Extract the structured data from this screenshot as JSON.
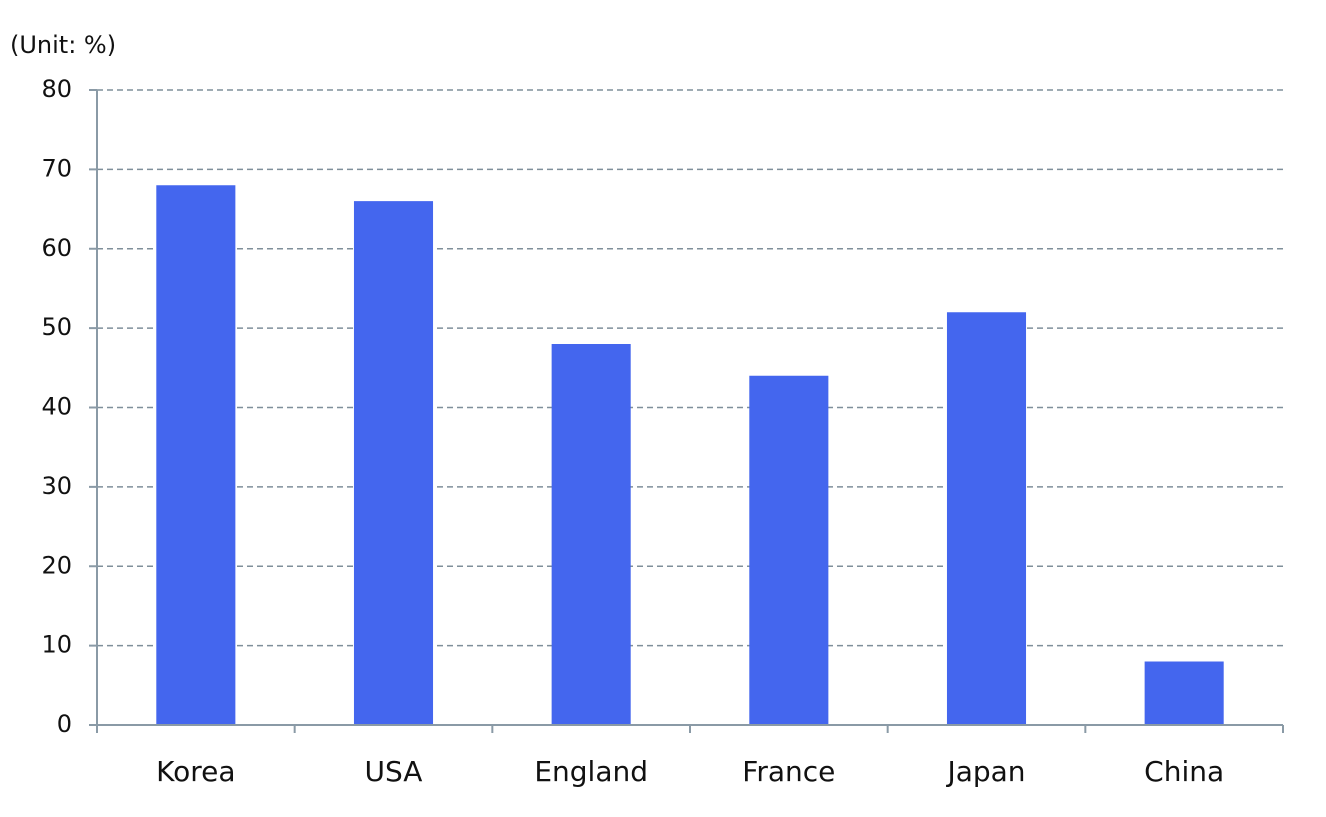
{
  "chart_data": {
    "type": "bar",
    "y_axis_label": "(Unit: %)",
    "categories": [
      "Korea",
      "USA",
      "England",
      "France",
      "Japan",
      "China"
    ],
    "values": [
      68,
      66,
      48,
      44,
      52,
      8
    ],
    "color": "#4466ee",
    "ylim": [
      0,
      80
    ],
    "yticks": [
      0,
      10,
      20,
      30,
      40,
      50,
      60,
      70,
      80
    ],
    "grid": true
  }
}
